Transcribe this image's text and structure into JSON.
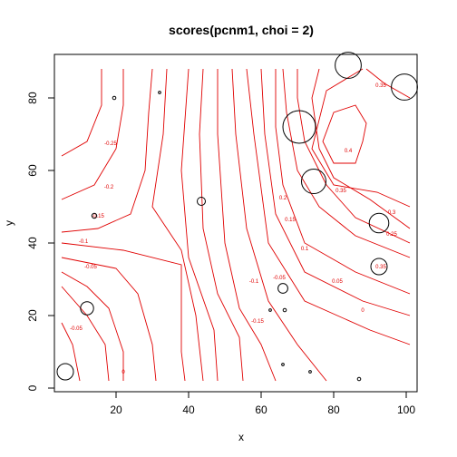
{
  "chart_data": {
    "type": "scatter",
    "title": "scores(pcnm1, choi = 2)",
    "xlabel": "x",
    "ylabel": "y",
    "xlim": [
      3,
      103
    ],
    "ylim": [
      -1,
      92
    ],
    "x_ticks": [
      20,
      40,
      60,
      80,
      100
    ],
    "y_ticks": [
      0,
      20,
      40,
      60,
      80
    ],
    "grid": false,
    "legend": "none",
    "colors": {
      "points": "#000000",
      "contours": "#e00000",
      "frame": "#000000"
    },
    "points": [
      {
        "x": 6,
        "y": 4.5,
        "size": 1.0
      },
      {
        "x": 12,
        "y": 22,
        "size": 0.8
      },
      {
        "x": 14,
        "y": 47.5,
        "size": 0.3
      },
      {
        "x": 19.5,
        "y": 80,
        "size": 0.2
      },
      {
        "x": 32,
        "y": 81.5,
        "size": 0.15
      },
      {
        "x": 43.5,
        "y": 51.5,
        "size": 0.5
      },
      {
        "x": 62.5,
        "y": 21.5,
        "size": 0.15
      },
      {
        "x": 66,
        "y": 27.5,
        "size": 0.6
      },
      {
        "x": 66.5,
        "y": 21.5,
        "size": 0.2
      },
      {
        "x": 66,
        "y": 6.5,
        "size": 0.15
      },
      {
        "x": 73.5,
        "y": 4.5,
        "size": 0.15
      },
      {
        "x": 87,
        "y": 2.5,
        "size": 0.2
      },
      {
        "x": 70.5,
        "y": 72,
        "size": 2.0
      },
      {
        "x": 74.5,
        "y": 57,
        "size": 1.5
      },
      {
        "x": 84,
        "y": 89,
        "size": 1.6
      },
      {
        "x": 92.5,
        "y": 45.5,
        "size": 1.2
      },
      {
        "x": 92.5,
        "y": 33.5,
        "size": 1.0
      },
      {
        "x": 99.5,
        "y": 83,
        "size": 1.6
      }
    ],
    "contour_labels": [
      {
        "text": "-0.05",
        "x": 9,
        "y": 16
      },
      {
        "text": "-0.05",
        "x": 13,
        "y": 33
      },
      {
        "text": "-0.1",
        "x": 11,
        "y": 40
      },
      {
        "text": "-0.15",
        "x": 15,
        "y": 47
      },
      {
        "text": "-0.2",
        "x": 18,
        "y": 55
      },
      {
        "text": "-0.25",
        "x": 18.5,
        "y": 67
      },
      {
        "text": "0",
        "x": 22,
        "y": 4
      },
      {
        "text": "-0.1",
        "x": 58,
        "y": 29
      },
      {
        "text": "-0.05",
        "x": 65,
        "y": 30
      },
      {
        "text": "-0.15",
        "x": 59,
        "y": 18
      },
      {
        "text": "0",
        "x": 88,
        "y": 21
      },
      {
        "text": "0.05",
        "x": 81,
        "y": 29
      },
      {
        "text": "0.1",
        "x": 72,
        "y": 38
      },
      {
        "text": "0.15",
        "x": 68,
        "y": 46
      },
      {
        "text": "0.2",
        "x": 66,
        "y": 52
      },
      {
        "text": "0.25",
        "x": 96,
        "y": 42
      },
      {
        "text": "0.3",
        "x": 96,
        "y": 48
      },
      {
        "text": "0.35",
        "x": 82,
        "y": 54
      },
      {
        "text": "0.4",
        "x": 84,
        "y": 65
      },
      {
        "text": "0.35",
        "x": 93,
        "y": 83
      },
      {
        "text": "0.35",
        "x": 93,
        "y": 33
      }
    ],
    "contours": [
      [
        [
          10,
          2
        ],
        [
          8,
          12
        ],
        [
          5,
          18
        ]
      ],
      [
        [
          18,
          2
        ],
        [
          17,
          12
        ],
        [
          12,
          20
        ],
        [
          5,
          28
        ]
      ],
      [
        [
          22,
          2
        ],
        [
          22,
          10
        ],
        [
          18,
          22
        ],
        [
          12,
          28
        ],
        [
          5,
          32
        ]
      ],
      [
        [
          31,
          2
        ],
        [
          30,
          12
        ],
        [
          26,
          26
        ],
        [
          20,
          33
        ],
        [
          5,
          36
        ]
      ],
      [
        [
          39,
          2
        ],
        [
          38,
          10
        ],
        [
          38,
          34
        ],
        [
          22,
          38
        ],
        [
          5,
          40
        ]
      ],
      [
        [
          5,
          43
        ],
        [
          15,
          44
        ],
        [
          24,
          48
        ],
        [
          28,
          60
        ],
        [
          29,
          76
        ],
        [
          30,
          88
        ]
      ],
      [
        [
          5,
          52
        ],
        [
          14,
          56
        ],
        [
          20,
          66
        ],
        [
          22,
          78
        ],
        [
          22,
          88
        ]
      ],
      [
        [
          5,
          64
        ],
        [
          12,
          68
        ],
        [
          16,
          78
        ],
        [
          16,
          88
        ]
      ],
      [
        [
          44,
          2
        ],
        [
          42,
          20
        ],
        [
          38,
          38
        ],
        [
          30,
          50
        ],
        [
          33,
          70
        ],
        [
          34,
          88
        ]
      ],
      [
        [
          48,
          2
        ],
        [
          47,
          16
        ],
        [
          40,
          36
        ],
        [
          38,
          60
        ],
        [
          40,
          88
        ]
      ],
      [
        [
          55,
          2
        ],
        [
          54,
          14
        ],
        [
          48,
          26
        ],
        [
          44,
          44
        ],
        [
          43,
          70
        ],
        [
          44,
          88
        ]
      ],
      [
        [
          64,
          2
        ],
        [
          60,
          12
        ],
        [
          54,
          22
        ],
        [
          50,
          40
        ],
        [
          48,
          70
        ],
        [
          48,
          88
        ]
      ],
      [
        [
          78,
          2
        ],
        [
          70,
          12
        ],
        [
          62,
          24
        ],
        [
          56,
          44
        ],
        [
          53,
          70
        ],
        [
          52,
          88
        ]
      ],
      [
        [
          101,
          12
        ],
        [
          90,
          16
        ],
        [
          72,
          24
        ],
        [
          62,
          40
        ],
        [
          58,
          70
        ],
        [
          56,
          88
        ]
      ],
      [
        [
          101,
          20
        ],
        [
          88,
          24
        ],
        [
          72,
          32
        ],
        [
          64,
          48
        ],
        [
          61,
          70
        ],
        [
          60,
          88
        ]
      ],
      [
        [
          101,
          26
        ],
        [
          86,
          32
        ],
        [
          72,
          40
        ],
        [
          66,
          56
        ],
        [
          64,
          72
        ],
        [
          64,
          88
        ]
      ],
      [
        [
          101,
          36
        ],
        [
          86,
          42
        ],
        [
          76,
          50
        ],
        [
          70,
          60
        ],
        [
          67,
          76
        ],
        [
          66,
          88
        ]
      ],
      [
        [
          101,
          40
        ],
        [
          86,
          47
        ],
        [
          78,
          56
        ],
        [
          72,
          68
        ],
        [
          70,
          80
        ],
        [
          70,
          88
        ]
      ],
      [
        [
          101,
          44
        ],
        [
          90,
          52
        ],
        [
          80,
          58
        ],
        [
          76,
          66
        ],
        [
          74,
          80
        ],
        [
          76,
          88
        ]
      ],
      [
        [
          101,
          50
        ],
        [
          92,
          54
        ],
        [
          80,
          56
        ],
        [
          74,
          66
        ],
        [
          78,
          82
        ],
        [
          88,
          88
        ]
      ],
      [
        [
          88,
          68
        ],
        [
          86,
          62
        ],
        [
          80,
          62
        ],
        [
          77,
          68
        ],
        [
          80,
          76
        ],
        [
          86,
          78
        ],
        [
          89,
          73
        ],
        [
          88,
          68
        ]
      ],
      [
        [
          89,
          88
        ],
        [
          94,
          84
        ],
        [
          101,
          80
        ]
      ]
    ]
  }
}
